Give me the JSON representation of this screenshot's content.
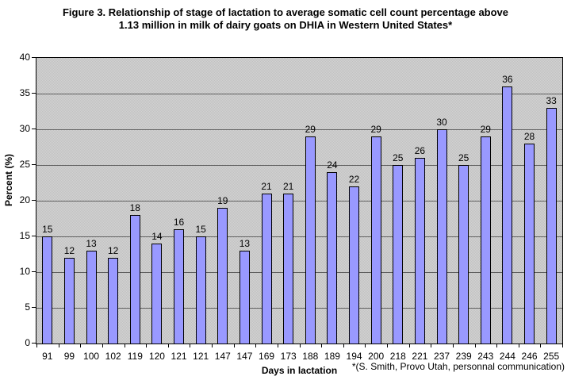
{
  "title": {
    "line1": "Figure 3. Relationship of stage of lactation to average somatic cell count percentage above",
    "line2": "1.13 million in milk of dairy goats on DHIA in Western United States*"
  },
  "footnote": "*(S. Smith, Provo Utah, personnal communication)",
  "chart_data": {
    "type": "bar",
    "title": "Figure 3. Relationship of stage of lactation to average somatic cell count percentage above 1.13 million in milk of dairy goats on DHIA in Western United States*",
    "xlabel": "Days in lactation",
    "ylabel": "Percent (%)",
    "categories": [
      "91",
      "99",
      "100",
      "102",
      "119",
      "120",
      "121",
      "121",
      "147",
      "147",
      "169",
      "173",
      "188",
      "189",
      "194",
      "200",
      "218",
      "221",
      "237",
      "239",
      "243",
      "244",
      "246",
      "255"
    ],
    "values": [
      15,
      12,
      13,
      12,
      18,
      14,
      16,
      15,
      19,
      13,
      21,
      21,
      29,
      24,
      22,
      29,
      25,
      26,
      30,
      25,
      29,
      36,
      28,
      33
    ],
    "data_labels_shown": true,
    "ylim": [
      0,
      40
    ],
    "ytick_step": 5,
    "grid": true,
    "legend": "none",
    "colors": {
      "bar_fill": "#9999ff",
      "bar_border": "#000000",
      "plot_background": "#c9c9c9",
      "gridline": "#5f5f5f",
      "axis": "#000000",
      "text": "#000000"
    }
  }
}
